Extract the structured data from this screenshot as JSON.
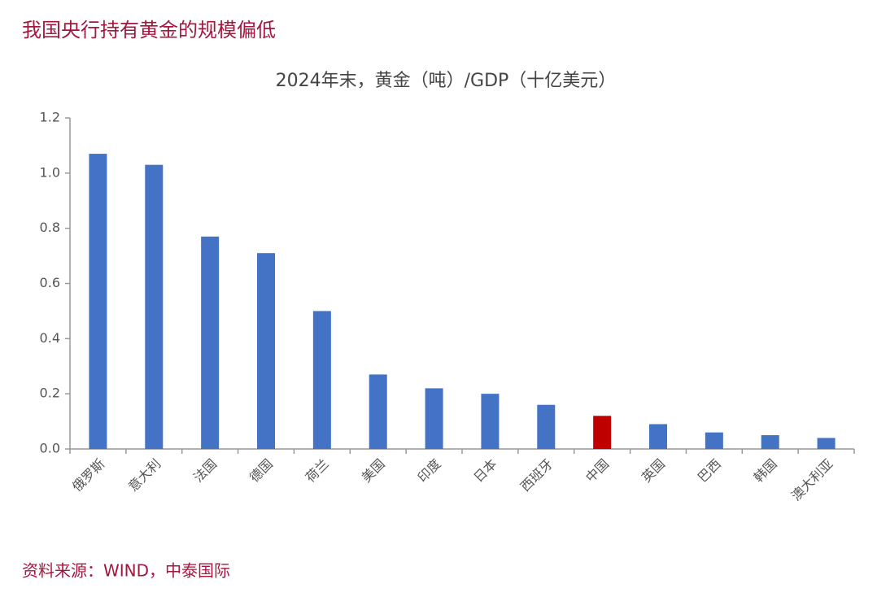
{
  "header": "我国央行持有黄金的规模偏低",
  "source": "资料来源：WIND，中泰国际",
  "chart_data": {
    "type": "bar",
    "title": "2024年末，黄金（吨）/GDP（十亿美元）",
    "categories": [
      "俄罗斯",
      "意大利",
      "法国",
      "德国",
      "荷兰",
      "美国",
      "印度",
      "日本",
      "西班牙",
      "中国",
      "英国",
      "巴西",
      "韩国",
      "澳大利亚"
    ],
    "values": [
      1.07,
      1.03,
      0.77,
      0.71,
      0.5,
      0.27,
      0.22,
      0.2,
      0.16,
      0.12,
      0.09,
      0.06,
      0.05,
      0.04
    ],
    "colors": [
      "#4472c4",
      "#4472c4",
      "#4472c4",
      "#4472c4",
      "#4472c4",
      "#4472c4",
      "#4472c4",
      "#4472c4",
      "#4472c4",
      "#c00000",
      "#4472c4",
      "#4472c4",
      "#4472c4",
      "#4472c4"
    ],
    "ylim": [
      0,
      1.2
    ],
    "yticks": [
      {
        "value": 0,
        "label": "0.0"
      },
      0.2,
      0.4,
      0.6,
      0.8,
      {
        "value": 1,
        "label": "1.0"
      },
      1.2
    ],
    "grid": false
  }
}
